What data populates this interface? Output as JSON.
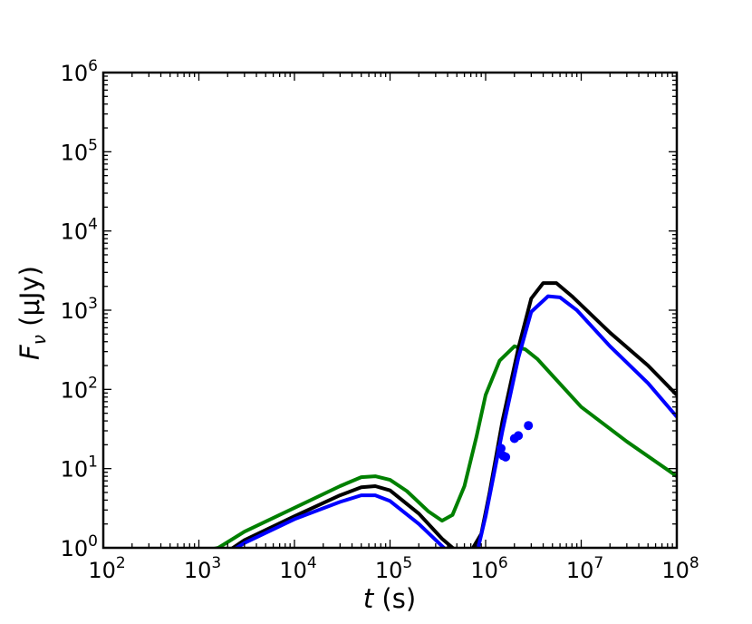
{
  "chart_data": {
    "type": "line",
    "xscale": "log",
    "yscale": "log",
    "xlim": [
      100,
      100000000
    ],
    "ylim": [
      1,
      1000000
    ],
    "xlabel": {
      "symbol": "t",
      "unit": " (s)"
    },
    "ylabel": {
      "symbol": "F",
      "subscript": "ν",
      "unit": " (μJy)"
    },
    "x_ticks": [
      {
        "base": "10",
        "exp": "2",
        "value": 100
      },
      {
        "base": "10",
        "exp": "3",
        "value": 1000
      },
      {
        "base": "10",
        "exp": "4",
        "value": 10000
      },
      {
        "base": "10",
        "exp": "5",
        "value": 100000
      },
      {
        "base": "10",
        "exp": "6",
        "value": 1000000
      },
      {
        "base": "10",
        "exp": "7",
        "value": 10000000
      },
      {
        "base": "10",
        "exp": "8",
        "value": 100000000
      }
    ],
    "y_ticks": [
      {
        "base": "10",
        "exp": "0",
        "value": 1
      },
      {
        "base": "10",
        "exp": "1",
        "value": 10
      },
      {
        "base": "10",
        "exp": "2",
        "value": 100
      },
      {
        "base": "10",
        "exp": "3",
        "value": 1000
      },
      {
        "base": "10",
        "exp": "4",
        "value": 10000
      },
      {
        "base": "10",
        "exp": "5",
        "value": 100000
      },
      {
        "base": "10",
        "exp": "6",
        "value": 1000000
      }
    ],
    "grid": false,
    "legend": "none",
    "series": [
      {
        "color": "#008000",
        "points": [
          [
            1000,
            0.88
          ],
          [
            1600,
            1.0
          ],
          [
            3000,
            1.6
          ],
          [
            10000,
            3.2
          ],
          [
            30000,
            6.0
          ],
          [
            50000,
            7.8
          ],
          [
            70000,
            8.0
          ],
          [
            100000,
            7.2
          ],
          [
            150000,
            5.2
          ],
          [
            250000,
            2.9
          ],
          [
            350000,
            2.2
          ],
          [
            450000,
            2.6
          ],
          [
            600000,
            6.0
          ],
          [
            800000,
            25
          ],
          [
            1000000,
            85
          ],
          [
            1400000,
            230
          ],
          [
            2000000,
            350
          ],
          [
            2600000,
            320
          ],
          [
            3500000,
            240
          ],
          [
            5000000,
            150
          ],
          [
            10000000,
            60
          ],
          [
            30000000,
            22
          ],
          [
            100000000,
            8
          ]
        ]
      },
      {
        "color": "#000000",
        "points": [
          [
            2000,
            0.9
          ],
          [
            3000,
            1.25
          ],
          [
            10000,
            2.5
          ],
          [
            30000,
            4.6
          ],
          [
            50000,
            5.8
          ],
          [
            70000,
            6.0
          ],
          [
            100000,
            5.3
          ],
          [
            200000,
            2.7
          ],
          [
            350000,
            1.3
          ],
          [
            500000,
            0.9
          ],
          [
            700000,
            0.9
          ],
          [
            900000,
            1.5
          ],
          [
            1100000,
            5.0
          ],
          [
            1500000,
            40
          ],
          [
            2200000,
            330
          ],
          [
            3000000,
            1400
          ],
          [
            4000000,
            2200
          ],
          [
            5500000,
            2200
          ],
          [
            8000000,
            1500
          ],
          [
            20000000,
            520
          ],
          [
            50000000,
            200
          ],
          [
            100000000,
            85
          ]
        ]
      },
      {
        "color": "#0000ff",
        "points": [
          [
            2000,
            0.85
          ],
          [
            3000,
            1.15
          ],
          [
            10000,
            2.3
          ],
          [
            30000,
            3.8
          ],
          [
            50000,
            4.6
          ],
          [
            70000,
            4.6
          ],
          [
            100000,
            3.9
          ],
          [
            200000,
            2.0
          ],
          [
            350000,
            1.05
          ],
          [
            450000,
            0.8
          ],
          [
            800000,
            0.8
          ],
          [
            1000000,
            2.5
          ],
          [
            1500000,
            30
          ],
          [
            2200000,
            250
          ],
          [
            3000000,
            950
          ],
          [
            4500000,
            1500
          ],
          [
            6000000,
            1450
          ],
          [
            9000000,
            1000
          ],
          [
            20000000,
            350
          ],
          [
            50000000,
            120
          ],
          [
            100000000,
            45
          ]
        ]
      }
    ],
    "scatter": {
      "color": "#0000ff",
      "points": [
        [
          1450000,
          18
        ],
        [
          1530000,
          14.5
        ],
        [
          1620000,
          14
        ],
        [
          2000000,
          24
        ],
        [
          2200000,
          26
        ],
        [
          2800000,
          35
        ]
      ]
    }
  }
}
